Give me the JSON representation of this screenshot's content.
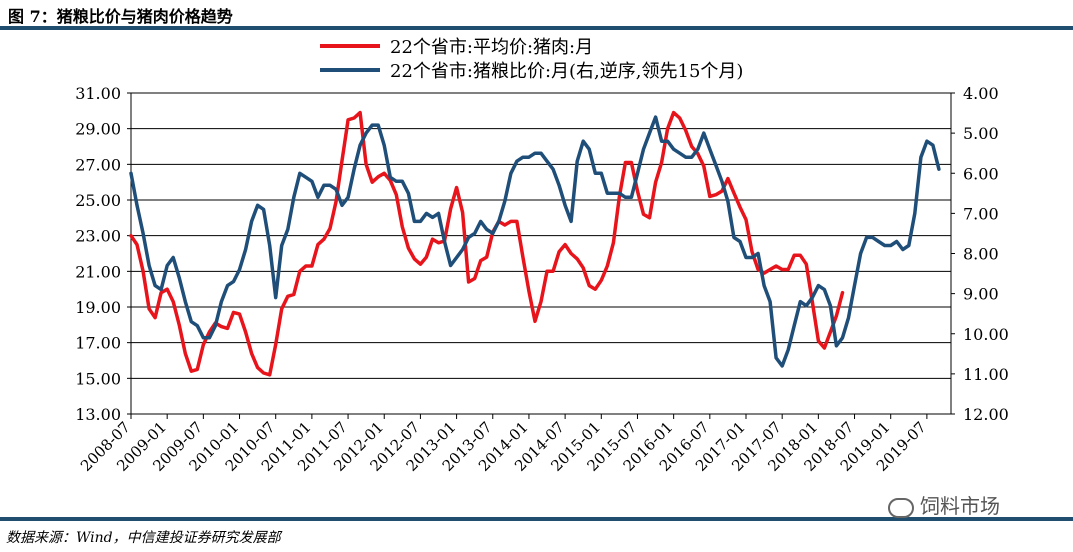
{
  "figure": {
    "title": "图 7：猪粮比价与猪肉价格趋势",
    "source": "数据来源：Wind，中信建投证券研究发展部",
    "watermark": "饲料市场",
    "watermark_icon": "wechat-icon"
  },
  "chart_data": {
    "type": "line",
    "legend_position": "top-center",
    "grid": "horizontal",
    "x_tick_labels": [
      "2008-07",
      "2009-01",
      "2009-07",
      "2010-01",
      "2010-07",
      "2011-01",
      "2011-07",
      "2012-01",
      "2012-07",
      "2013-01",
      "2013-07",
      "2014-01",
      "2014-07",
      "2015-01",
      "2015-07",
      "2016-01",
      "2016-07",
      "2017-01",
      "2017-07",
      "2018-01",
      "2018-07",
      "2019-01",
      "2019-07"
    ],
    "y_left": {
      "ticks": [
        "13.00",
        "15.00",
        "17.00",
        "19.00",
        "21.00",
        "23.00",
        "25.00",
        "27.00",
        "29.00",
        "31.00"
      ],
      "range": [
        13,
        31
      ]
    },
    "y_right": {
      "ticks": [
        "4.00",
        "5.00",
        "6.00",
        "7.00",
        "8.00",
        "9.00",
        "10.00",
        "11.00",
        "12.00"
      ],
      "range": [
        4,
        12
      ],
      "reversed": true
    },
    "series": [
      {
        "name": "22个省市:平均价:猪肉:月",
        "axis": "left",
        "color": "#e8141b",
        "values": [
          23.0,
          22.5,
          21.0,
          18.9,
          18.4,
          19.8,
          20.0,
          19.3,
          18.0,
          16.4,
          15.4,
          15.5,
          16.9,
          17.6,
          18.1,
          17.9,
          17.8,
          18.7,
          18.6,
          17.6,
          16.4,
          15.6,
          15.3,
          15.2,
          16.9,
          18.9,
          19.6,
          19.7,
          21.0,
          21.3,
          21.3,
          22.5,
          22.8,
          23.4,
          24.9,
          27.2,
          29.5,
          29.6,
          29.9,
          27.0,
          26.0,
          26.3,
          26.5,
          26.1,
          25.3,
          23.5,
          22.3,
          21.7,
          21.4,
          21.8,
          22.8,
          22.6,
          22.7,
          24.5,
          25.7,
          24.3,
          20.4,
          20.6,
          21.6,
          21.8,
          23.2,
          23.8,
          23.6,
          23.8,
          23.8,
          21.8,
          19.9,
          18.2,
          19.3,
          21.0,
          21.0,
          22.1,
          22.5,
          22.0,
          21.7,
          21.2,
          20.2,
          20.0,
          20.5,
          21.3,
          22.6,
          25.2,
          27.1,
          27.1,
          25.5,
          24.2,
          24.0,
          26.0,
          27.1,
          29.0,
          29.9,
          29.6,
          28.9,
          28.0,
          27.6,
          26.9,
          25.2,
          25.3,
          25.5,
          26.2,
          25.4,
          24.6,
          23.9,
          22.1,
          21.1,
          20.9,
          21.1,
          21.3,
          21.1,
          21.1,
          21.9,
          21.9,
          21.4,
          19.3,
          17.1,
          16.7,
          17.6,
          18.5,
          19.8
        ]
      },
      {
        "name": "22个省市:猪粮比价:月(右,逆序,领先15个月)",
        "axis": "right",
        "color": "#1f4e79",
        "values": [
          6.0,
          6.8,
          7.5,
          8.3,
          8.8,
          8.9,
          8.3,
          8.1,
          8.6,
          9.2,
          9.7,
          9.8,
          10.1,
          10.1,
          9.8,
          9.2,
          8.8,
          8.7,
          8.4,
          7.9,
          7.2,
          6.8,
          6.9,
          7.8,
          9.1,
          7.8,
          7.4,
          6.6,
          6.0,
          6.1,
          6.2,
          6.6,
          6.3,
          6.3,
          6.4,
          6.8,
          6.6,
          5.9,
          5.3,
          5.0,
          4.8,
          4.8,
          5.3,
          6.1,
          6.2,
          6.2,
          6.5,
          7.2,
          7.2,
          7.0,
          7.1,
          7.0,
          7.7,
          8.3,
          8.1,
          7.9,
          7.6,
          7.5,
          7.2,
          7.4,
          7.5,
          7.2,
          6.7,
          6.0,
          5.7,
          5.6,
          5.6,
          5.5,
          5.5,
          5.7,
          5.9,
          6.3,
          6.8,
          7.2,
          5.7,
          5.2,
          5.4,
          6.0,
          6.0,
          6.5,
          6.5,
          6.5,
          6.6,
          6.6,
          6.0,
          5.4,
          5.0,
          4.6,
          5.2,
          5.2,
          5.4,
          5.5,
          5.6,
          5.6,
          5.4,
          5.0,
          5.4,
          5.8,
          6.2,
          6.7,
          7.6,
          7.7,
          8.1,
          8.1,
          8.0,
          8.8,
          9.2,
          10.6,
          10.8,
          10.4,
          9.8,
          9.2,
          9.3,
          9.1,
          8.8,
          8.9,
          9.3,
          10.3,
          10.1,
          9.6,
          8.8,
          8.0,
          7.6,
          7.6,
          7.7,
          7.8,
          7.8,
          7.7,
          7.9,
          7.8,
          7.0,
          5.6,
          5.2,
          5.3,
          5.9
        ]
      }
    ]
  }
}
